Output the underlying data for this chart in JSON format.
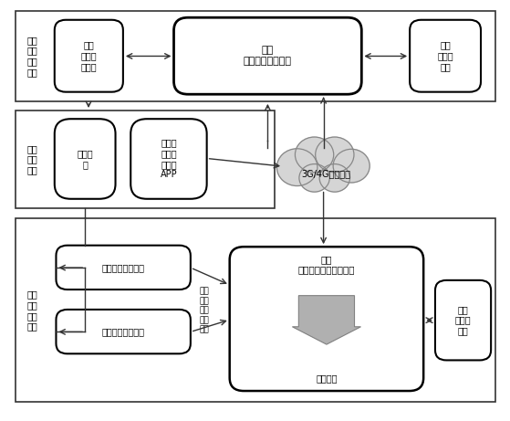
{
  "fig_width": 5.59,
  "fig_height": 4.61,
  "dpi": 100,
  "bg_color": "#ffffff",
  "box_color": "#ffffff",
  "box_edge": "#000000",
  "text_color": "#000000",
  "section1_label": "云端\n车牌\n预测\n系统",
  "section2_label": "车辆\n用户\n设备",
  "section3_label": "车道\n车牌\n识别\n设备",
  "box1_label": "云端\n车辆预\n测模块",
  "box2_label": "云端\n车牌预测处理系统",
  "box3_label": "云端\n车辆数\n据池",
  "box4_label": "用户车\n辆",
  "box5_label": "智能手\n机和专\n用手机\nAPP",
  "box6_label": "前置车牌识别设备",
  "box7_label": "后置车牌识别设备",
  "box8_title": "车道\n二次车牌识别处理系统",
  "box9_label": "本地\n车辆数\n据池",
  "cloud_label": "3G/4G无线网络",
  "side_label": "车道\n二次\n车牌\n识别\n系统",
  "sublabel": "精准车牌",
  "font_size": 7,
  "font_family": "SimHei"
}
